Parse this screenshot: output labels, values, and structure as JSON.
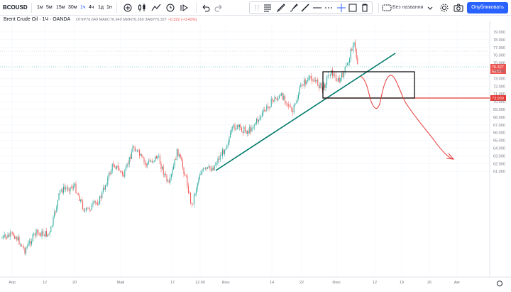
{
  "toolbar": {
    "symbol": "BCOUSD",
    "intervals": [
      "1м",
      "5м",
      "15м",
      "30м",
      "1ч",
      "4ч",
      "1д",
      "1н"
    ],
    "active_interval": "1ч",
    "template_label": "Без названия",
    "publish_label": "Опубликовать"
  },
  "legend": {
    "title": "Brent Crude Oil · 1Ч · OANDA",
    "open": "ОТКР76.649",
    "high": "МАКС76.649",
    "low": "МИН76.266",
    "close": "ЗАКР76.327",
    "change": "−0.322 (−0.42%)"
  },
  "price_axis": {
    "ticks": [
      "79.000",
      "78.000",
      "77.000",
      "76.000",
      "75.000",
      "74.000",
      "73.000",
      "72.000",
      "71.000",
      "70.000",
      "69.000",
      "68.000",
      "67.000",
      "66.000",
      "65.000",
      "64.000",
      "63.000",
      "62.000",
      "61.000"
    ],
    "current_price": "76.327",
    "countdown": "55:02",
    "level_price": "73.930"
  },
  "time_axis": {
    "ticks": [
      "Апр",
      "12",
      "20",
      "Май",
      "17",
      "12:00",
      "Июн",
      "14",
      "22",
      "Июл",
      "12",
      "19",
      "26",
      "Авг"
    ]
  },
  "colors": {
    "up": "#26a69a",
    "down": "#ef5350",
    "trendline": "#00796b",
    "box": "#000000",
    "level": "#e53935",
    "forecast": "#e53935",
    "accent": "#2962ff"
  },
  "icons": {
    "settings": "gear-icon",
    "camera": "camera-icon"
  }
}
